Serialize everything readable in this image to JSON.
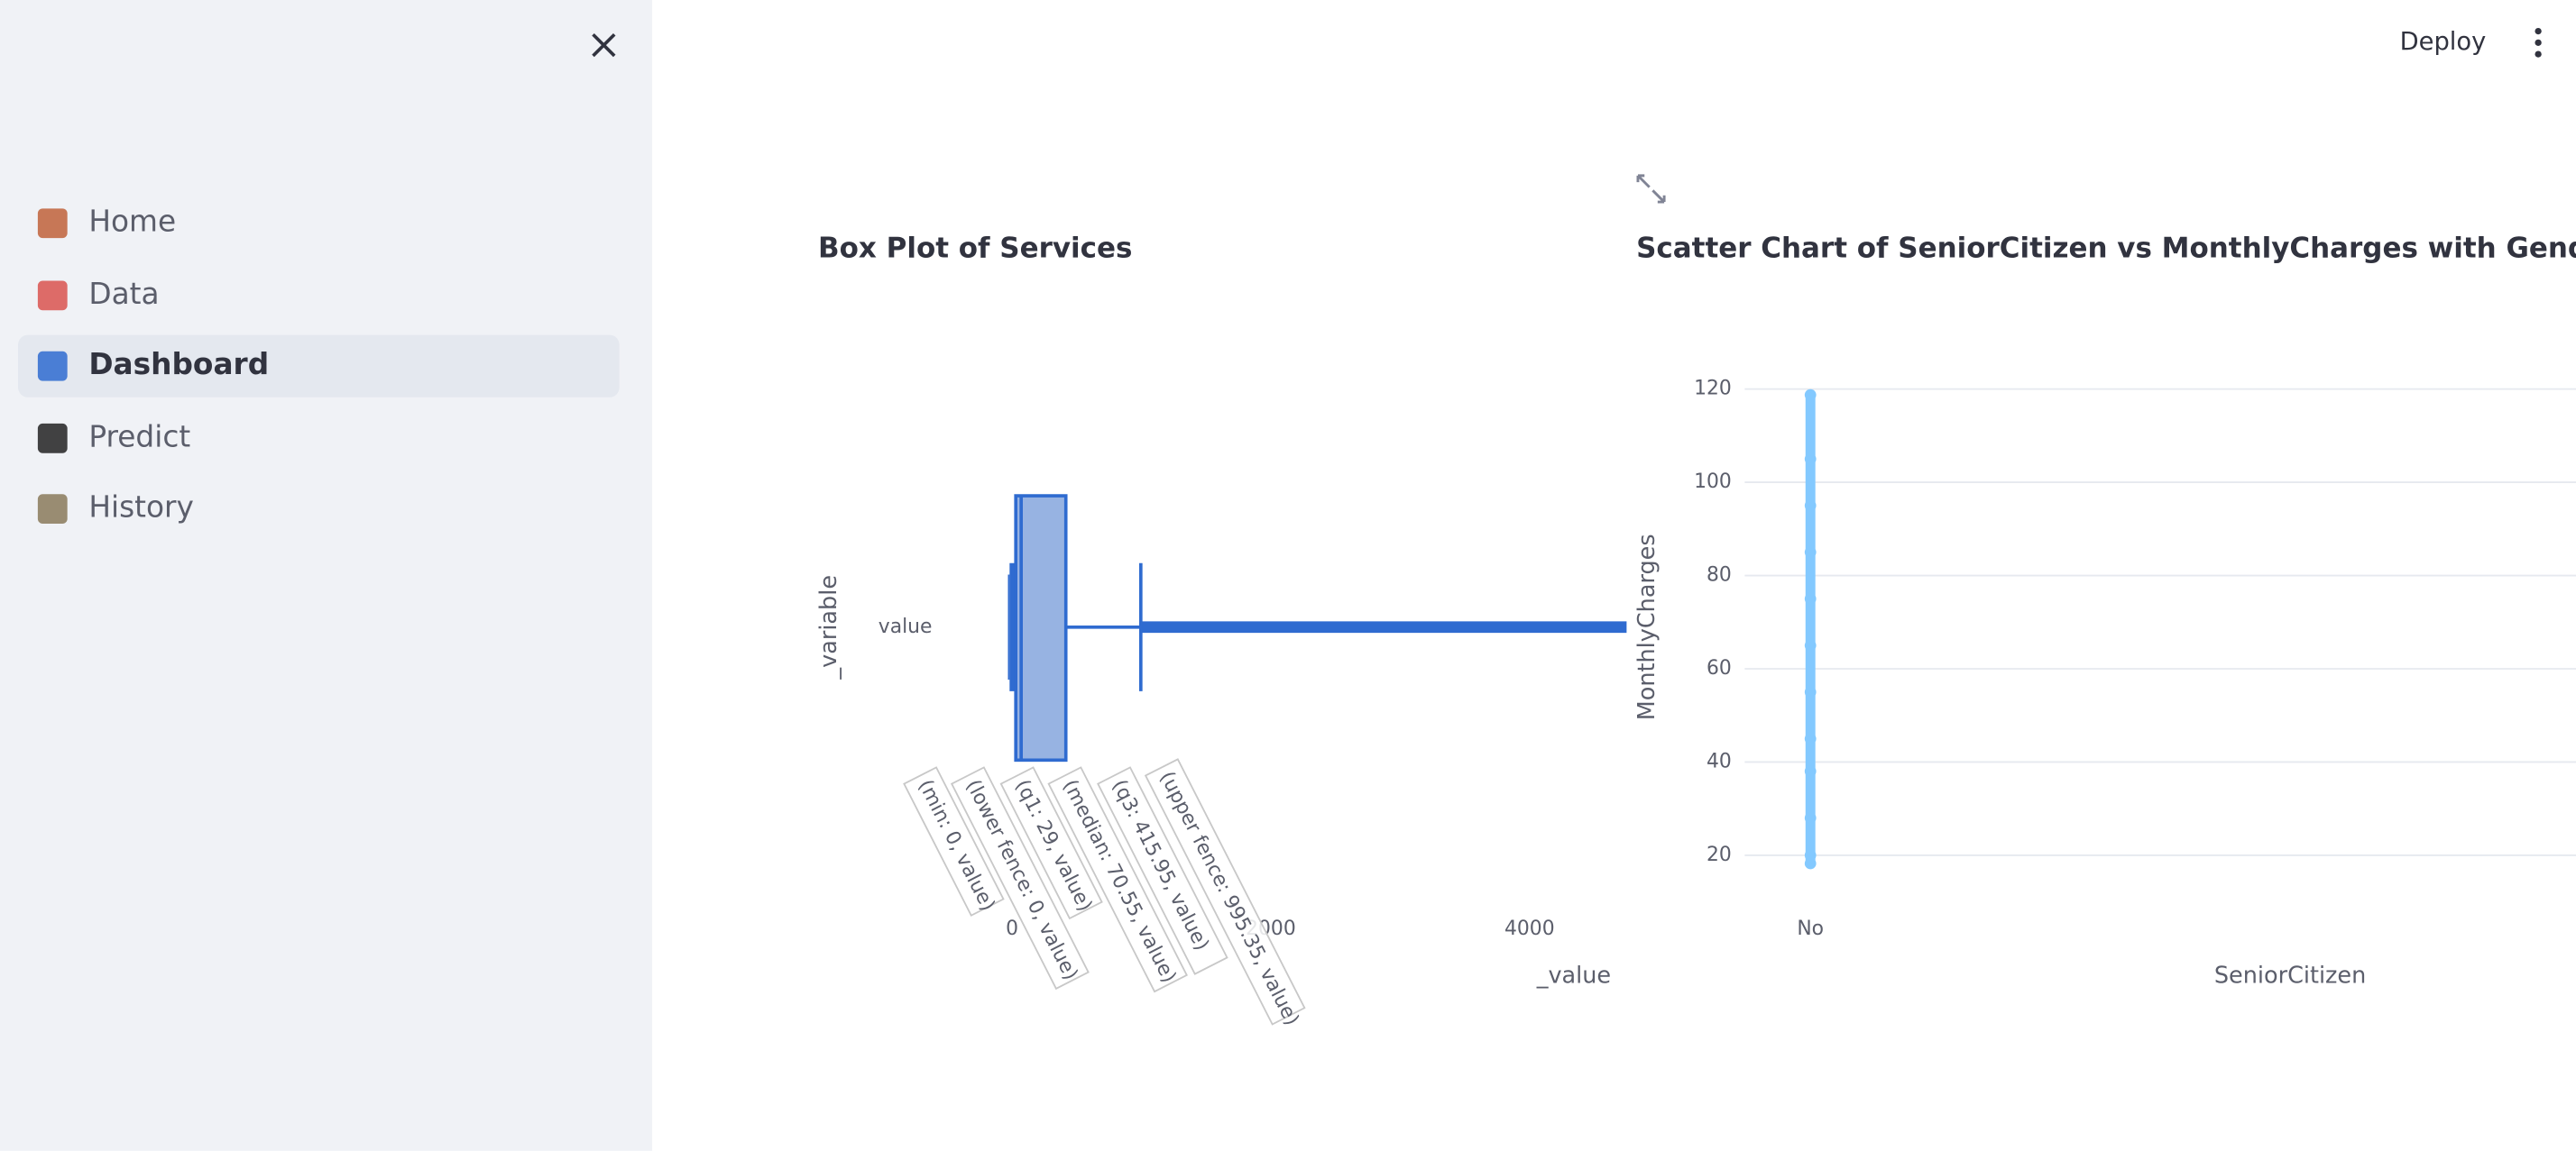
{
  "sidebar": {
    "nav": [
      "Home",
      "Data",
      "Dashboard",
      "Predict",
      "History"
    ],
    "selected": 2
  },
  "header": {
    "deploy": "Deploy"
  },
  "chart_data": [
    {
      "type": "box",
      "title": "Box Plot of Services",
      "x_label": "_value",
      "y_label": "_variable",
      "categories": [
        "value"
      ],
      "color": "#2f6bd0",
      "stats": {
        "min": 0,
        "lower_fence": 0,
        "q1": 29,
        "median": 70.55,
        "q3": 415.95,
        "upper_fence": 995.35
      },
      "hover_labels": [
        "(min: 0, value)",
        "(lower fence: 0, value)",
        "(q1: 29, value)",
        "(median: 70.55, value)",
        "(q3: 415.95, value)",
        "(upper fence: 995.35, value)"
      ],
      "xlim": [
        -460,
        4750
      ],
      "xticks": [
        0,
        2000,
        4000
      ]
    },
    {
      "type": "scatter",
      "title": "Scatter Chart of SeniorCitizen vs MonthlyCharges with Gender Colo",
      "x_label": "SeniorCitizen",
      "y_label": "MonthlyCharges",
      "categories": [
        "No"
      ],
      "series": [
        {
          "color": "#83c9ff",
          "x": [
            "No",
            "No",
            "No",
            "No",
            "No",
            "No",
            "No",
            "No",
            "No",
            "No",
            "No",
            "No"
          ],
          "values": [
            18.25,
            20,
            28,
            38,
            45,
            55,
            65,
            75,
            85,
            95,
            105,
            118.75
          ]
        }
      ],
      "ylim": [
        12,
        124
      ],
      "yticks": [
        20,
        40,
        60,
        80,
        100,
        120
      ],
      "grid": true
    }
  ]
}
